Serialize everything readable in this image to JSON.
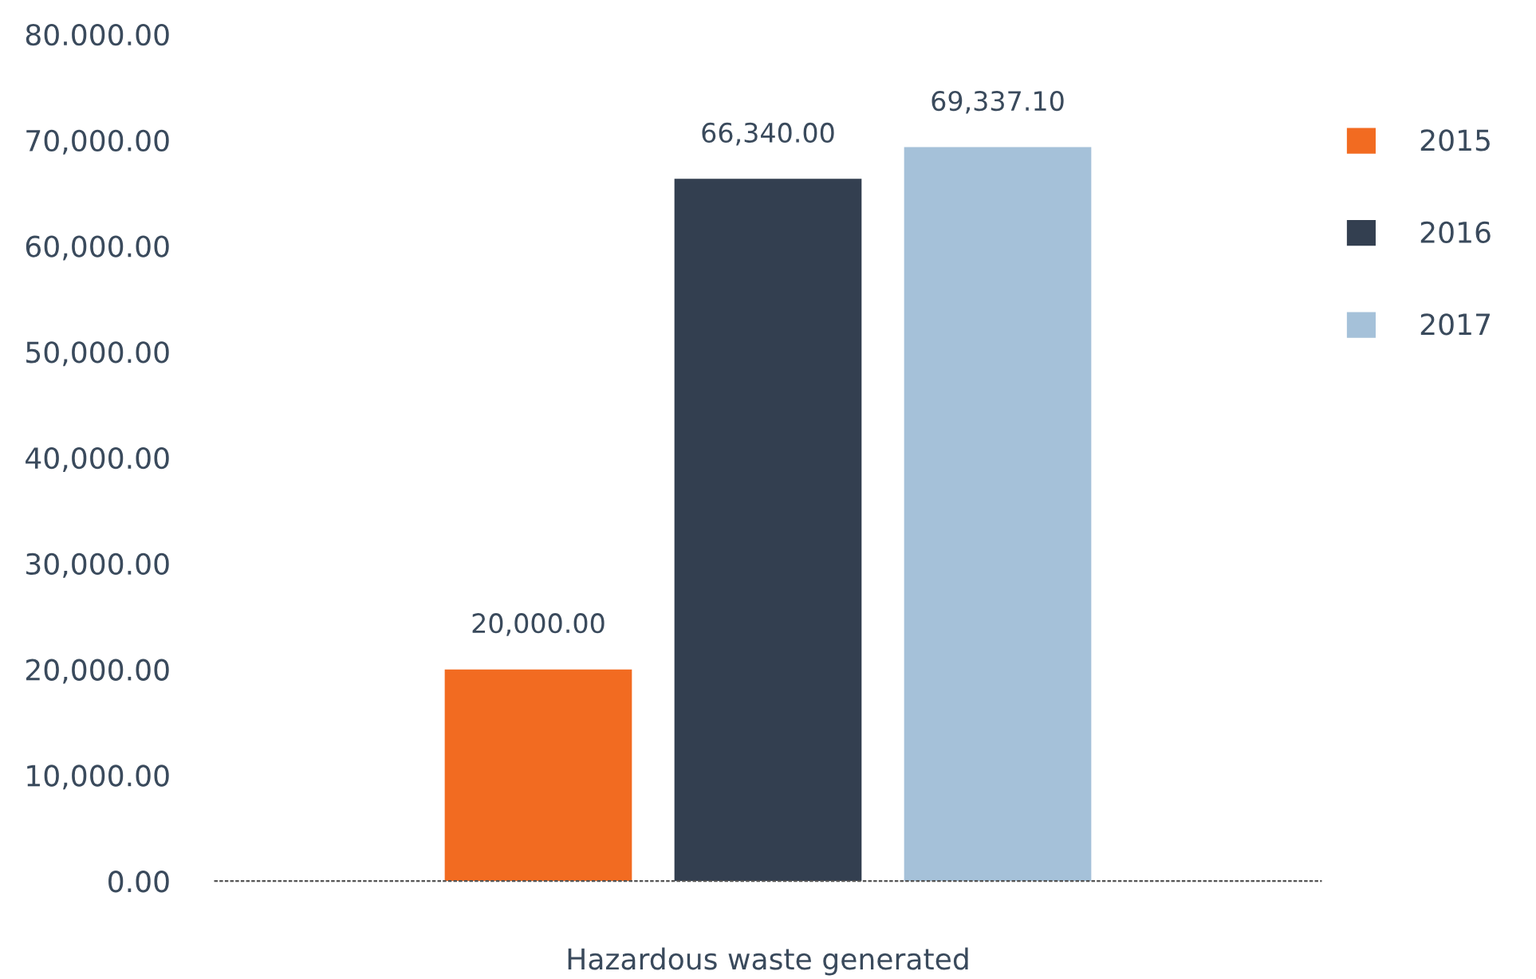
{
  "chart_data": {
    "type": "bar",
    "categories": [
      "Hazardous waste generated"
    ],
    "series": [
      {
        "name": "2015",
        "color": "#f26b21",
        "values": [
          20000
        ],
        "value_labels": [
          "20,000.00"
        ]
      },
      {
        "name": "2016",
        "color": "#333f50",
        "values": [
          66340
        ],
        "value_labels": [
          "66,340.00"
        ]
      },
      {
        "name": "2017",
        "color": "#a5c1d9",
        "values": [
          69337.1
        ],
        "value_labels": [
          "69,337.10"
        ]
      }
    ],
    "ylim": [
      0,
      80000
    ],
    "yticks": [
      {
        "value": 0,
        "label": "0.00"
      },
      {
        "value": 10000,
        "label": "10,000.00"
      },
      {
        "value": 20000,
        "label": "20,000.00"
      },
      {
        "value": 30000,
        "label": "30,000.00"
      },
      {
        "value": 40000,
        "label": "40,000.00"
      },
      {
        "value": 50000,
        "label": "50,000.00"
      },
      {
        "value": 60000,
        "label": "60,000.00"
      },
      {
        "value": 70000,
        "label": "70,000.00"
      },
      {
        "value": 80000,
        "label": "80.000.00"
      }
    ],
    "grid": false,
    "legend": "right"
  }
}
